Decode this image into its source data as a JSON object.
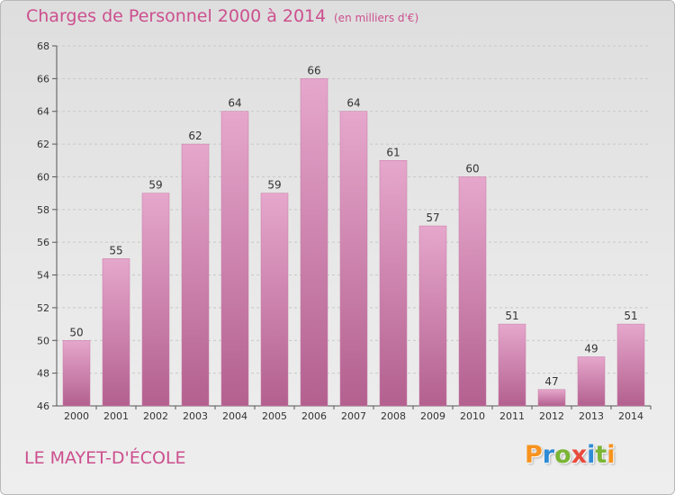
{
  "title": "Charges de Personnel 2000 à 2014",
  "subtitle": "(en milliers d'€)",
  "commune": "LE MAYET-D'ÉCOLE",
  "logo": {
    "letters": [
      "P",
      "r",
      "o",
      "x",
      "i",
      "t",
      "i"
    ],
    "colors": [
      "#f7931e",
      "#2e8bd6",
      "#7ab534",
      "#e84a3c",
      "#2e8bd6",
      "#7ab534",
      "#f7931e"
    ]
  },
  "colors": {
    "accent": "#cc4f8e",
    "bar_light": "#e6a7cc",
    "bar_dark": "#b3608f"
  },
  "chart_data": {
    "type": "bar",
    "categories": [
      "2000",
      "2001",
      "2002",
      "2003",
      "2004",
      "2005",
      "2006",
      "2007",
      "2008",
      "2009",
      "2010",
      "2011",
      "2012",
      "2013",
      "2014"
    ],
    "values": [
      50,
      55,
      59,
      62,
      64,
      59,
      66,
      64,
      61,
      57,
      60,
      51,
      47,
      49,
      51
    ],
    "title": "Charges de Personnel 2000 à 2014",
    "subtitle": "(en milliers d'€)",
    "xlabel": "",
    "ylabel": "",
    "ylim": [
      46,
      68
    ],
    "yticks": [
      46,
      48,
      50,
      52,
      54,
      56,
      58,
      60,
      62,
      64,
      66,
      68
    ],
    "grid": true,
    "legend": "none"
  }
}
